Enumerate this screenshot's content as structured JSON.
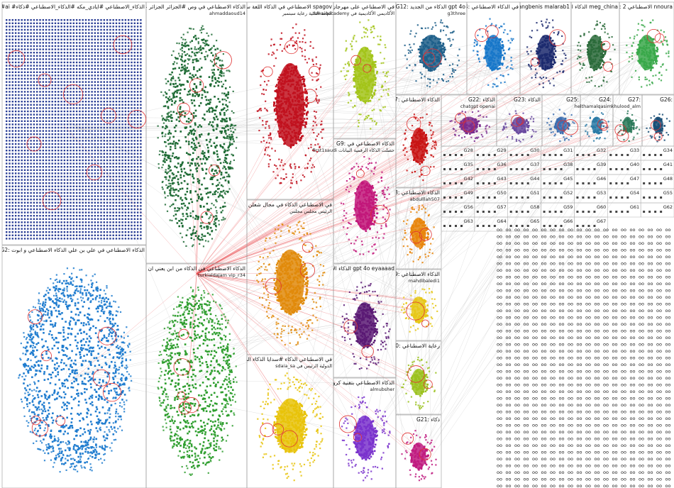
{
  "title": "",
  "layout": "group-in-a-box network graph",
  "edge_color": "#b8b8b8",
  "highlight_edge_color": "#e8484b",
  "groups": [
    {
      "id": "G1",
      "header": "G1: الاصطناعي #ذكاءاصطناعي #ai #الذكاء_الاصطناعي #ايادي_مكه #الذكاء_الاصطناعي #ذكاء",
      "sub": "",
      "color": "#2b3f96",
      "shape": "grid"
    },
    {
      "id": "G2",
      "header": "G2: الذكاء الاصطناعي في علي بن علي الذكاء الاصطناعي و ابوت",
      "sub": "",
      "color": "#1f7ccf",
      "shape": "cloud"
    },
    {
      "id": "G3",
      "header": "G3: الذكاء الاصطناعي في وص #الجزائر الجزائر علي ابن",
      "sub": "ahmaddaoud14",
      "color": "#1e6b35",
      "shape": "cloud"
    },
    {
      "id": "G4",
      "header": "G4: الذكاء الاصطناعي في الذكاء من ابن يعني ان",
      "sub": "turkialdajam vip_r34",
      "color": "#2e9e2e",
      "shape": "cloud"
    },
    {
      "id": "G5",
      "header": "G5: الاصطناعي في الذكاء اللغة سدايا spagov",
      "sub": "العامة الثانية رعاية سبتمبر",
      "color": "#c1121f",
      "shape": "ellipse"
    },
    {
      "id": "G6",
      "header": "G6: في الاصطناعي الذكاء في مجال شعلن اليوم",
      "sub": "الرئيس مجلس مجلس",
      "color": "#e08a0b",
      "shape": "ellipse"
    },
    {
      "id": "G7",
      "header": "G7: في الاصطناعي الذكاء #سدايا الذكاء المملكة",
      "sub": "sdaia_sa الدولية الرئيس في",
      "color": "#e8c30a",
      "shape": "ellipse"
    },
    {
      "id": "G8",
      "header": "G8: في الاصطناعي على مهرجان النسخة 2024",
      "sub": "tuwaiqacademy الأكاديمي الأكاديمية في",
      "color": "#a3c41a",
      "shape": "ellipse"
    },
    {
      "id": "G9",
      "header": "G9: الذكاء الاصطناعي في",
      "sub": "first1saudi حصلت الذكاء الرقمية البيانات",
      "color": "#c2187a",
      "shape": "ellipse"
    },
    {
      "id": "G10",
      "header": "G10: الذكاء الاصطناعي في شركة gpt 4o eyaaaad",
      "sub": "",
      "color": "#5b1a74",
      "shape": "ellipse"
    },
    {
      "id": "G11",
      "header": "G11: الذكاء الاصطناعي بتقنية كروق",
      "sub": "almubsher",
      "color": "#7a33cc",
      "shape": "ellipse"
    },
    {
      "id": "G12",
      "header": "G12: الذكاء من الجديد gpt 4o",
      "sub": "g3three",
      "color": "#1f5f8a",
      "shape": "ellipse"
    },
    {
      "id": "G13",
      "header": "G13: pangbenis malarab1",
      "sub": "",
      "color": "#1c2a6e",
      "shape": "ellipse"
    },
    {
      "id": "G14",
      "header": "G14: في الذكاء الاصطناعي",
      "sub": "",
      "color": "#1877c9",
      "shape": "ellipse"
    },
    {
      "id": "G15",
      "header": "G15: الذكاء الاصطناعي meg_china",
      "sub": "",
      "color": "#2b6b3b",
      "shape": "ellipse"
    },
    {
      "id": "G16",
      "header": "G16: 2 الاصطناعي nnoura",
      "sub": "",
      "color": "#39a84a",
      "shape": "ellipse"
    },
    {
      "id": "G17",
      "header": "G17: الذكاء الاصطناعي",
      "sub": "",
      "color": "#c81414",
      "shape": "ellipse"
    },
    {
      "id": "G18",
      "header": "G18: الذكاء الاصطناعي",
      "sub": "abdulllah507",
      "color": "#e8850c",
      "shape": "ellipse"
    },
    {
      "id": "G19",
      "header": "G19: الذكاء الاصطناعي",
      "sub": "mahdibaledi1",
      "color": "#e6c81a",
      "shape": "ellipse"
    },
    {
      "id": "G20",
      "header": "G20: رعاية الاصطناعي",
      "sub": "",
      "color": "#9bc21f",
      "shape": "ellipse"
    },
    {
      "id": "G21",
      "header": "G21: ذكاء",
      "sub": "",
      "color": "#c01c80",
      "shape": "ellipse"
    },
    {
      "id": "G22",
      "header": "G22: الذكاء",
      "sub": "chatgpt openai",
      "color": "#7b2d8e",
      "shape": "ellipse"
    },
    {
      "id": "G23",
      "header": "G23: الذكاء",
      "sub": "",
      "color": "#6a4aa0",
      "shape": "ellipse"
    },
    {
      "id": "G24",
      "header": "G24:",
      "sub": "helthamalqasim",
      "color": "#2b7aa6",
      "shape": "ellipse"
    },
    {
      "id": "G25",
      "header": "G25:",
      "sub": "",
      "color": "#3d6fb0",
      "shape": "ellipse"
    },
    {
      "id": "G26",
      "header": "G26:",
      "sub": "",
      "color": "#1a4f77",
      "shape": "ellipse"
    },
    {
      "id": "G27",
      "header": "G27:",
      "sub": "khulood_alm",
      "color": "#2c7a5a",
      "shape": "ellipse"
    }
  ],
  "small_group_ids": [
    "G28",
    "G29",
    "G30",
    "G31",
    "G32",
    "G33",
    "G34",
    "G35",
    "G36",
    "G37",
    "G38",
    "G39",
    "G40",
    "G41",
    "G42",
    "G43",
    "G44",
    "G45",
    "G46",
    "G47",
    "G48",
    "G49",
    "G50",
    "G51",
    "G52",
    "G53",
    "G54",
    "G55",
    "G56",
    "G57",
    "G58",
    "G59",
    "G60",
    "G61",
    "G62",
    "G63",
    "G64",
    "G65",
    "G66",
    "G67"
  ]
}
